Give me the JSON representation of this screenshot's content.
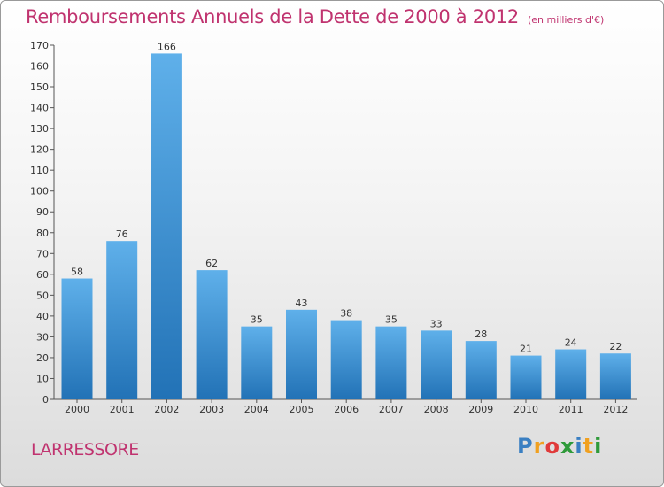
{
  "title": "Remboursements Annuels de la Dette de 2000 à 2012",
  "subtitle": "(en milliers d'€)",
  "place_name": "LARRESSORE",
  "logo": {
    "text": "Proxiti",
    "colors": [
      "#3a7fc2",
      "#f0a020",
      "#e03a3a",
      "#2f9a3a",
      "#3a7fc2",
      "#f0a020",
      "#2f9a3a"
    ]
  },
  "colors": {
    "accent": "#c0336f",
    "bar_top": "#5fb0ea",
    "bar_bottom": "#2272b6"
  },
  "chart_data": {
    "type": "bar",
    "categories": [
      "2000",
      "2001",
      "2002",
      "2003",
      "2004",
      "2005",
      "2006",
      "2007",
      "2008",
      "2009",
      "2010",
      "2011",
      "2012"
    ],
    "values": [
      58,
      76,
      166,
      62,
      35,
      43,
      38,
      35,
      33,
      28,
      21,
      24,
      22
    ],
    "ylim": [
      0,
      170
    ],
    "yticks": [
      0,
      10,
      20,
      30,
      40,
      50,
      60,
      70,
      80,
      90,
      100,
      110,
      120,
      130,
      140,
      150,
      160,
      170
    ],
    "grid": false,
    "data_labels": true
  }
}
